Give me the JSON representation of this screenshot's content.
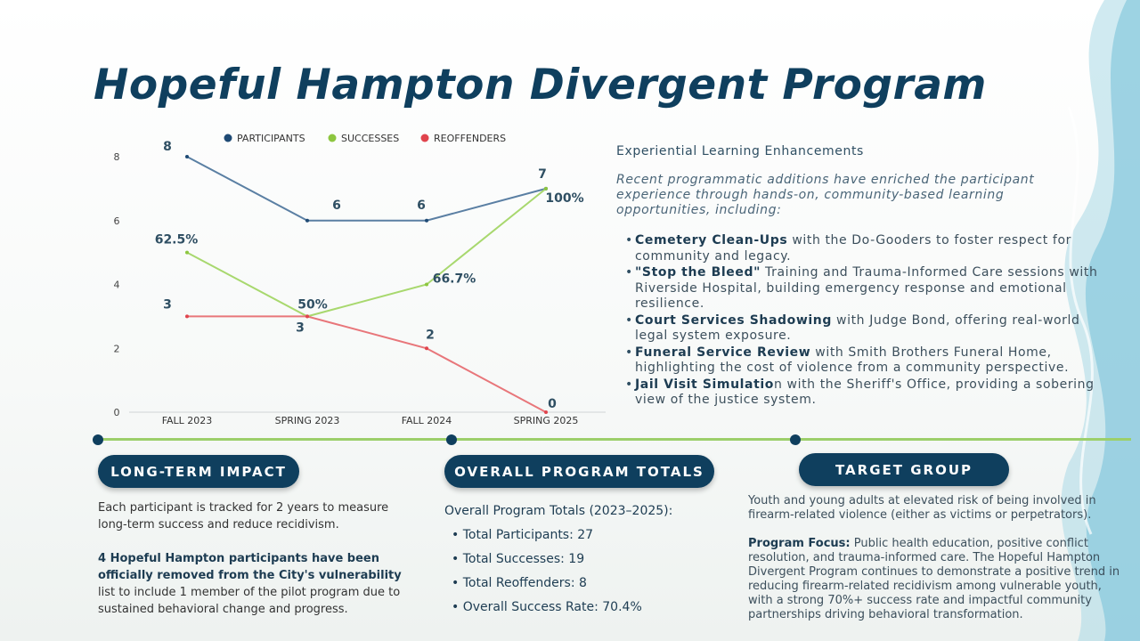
{
  "title": "Hopeful Hampton Divergent Program",
  "chart_data": {
    "type": "line",
    "categories": [
      "FALL 2023",
      "SPRING 2023",
      "FALL 2024",
      "SPRING 2025"
    ],
    "ylim": [
      0,
      8
    ],
    "yticks": [
      0,
      2,
      4,
      6,
      8
    ],
    "legend_position": "top",
    "grid": false,
    "series": [
      {
        "name": "PARTICIPANTS",
        "values": [
          8,
          6,
          6,
          7
        ],
        "labels": [
          "8",
          "6",
          "6",
          "7"
        ],
        "color": "#5a7fa3",
        "dot": "#1e4a74"
      },
      {
        "name": "SUCCESSES",
        "values": [
          5,
          3,
          4,
          7
        ],
        "labels": [
          "62.5%",
          "50%",
          "66.7%",
          "100%"
        ],
        "color": "#a8d86e",
        "dot": "#8dc63f"
      },
      {
        "name": "REOFFENDERS",
        "values": [
          3,
          3,
          2,
          0
        ],
        "labels": [
          "3",
          "3",
          "2",
          "0"
        ],
        "color": "#e8767a",
        "dot": "#e0444d"
      }
    ]
  },
  "experiential": {
    "heading": "Experiential Learning Enhancements",
    "intro": "Recent programmatic additions have enriched the participant experience through hands-on, community-based learning opportunities, including:",
    "items": [
      {
        "bold": "Cemetery Clean-Ups",
        "rest": " with the Do-Gooders to foster respect for community and legacy."
      },
      {
        "bold": "\"Stop the Bleed\"",
        "rest": " Training and Trauma-Informed Care sessions with Riverside Hospital, building emergency response and emotional resilience."
      },
      {
        "bold": "Court Services Shadowing",
        "rest": " with Judge Bond, offering real-world legal system exposure."
      },
      {
        "bold": "Funeral Service Review",
        "rest": " with Smith Brothers Funeral Home, highlighting the cost of violence from a community perspective."
      },
      {
        "bold": "Jail Visit Simulatio",
        "rest": "n with the Sheriff's Office, providing a sobering view of the justice system."
      }
    ]
  },
  "long_term": {
    "pill": "LONG-TERM IMPACT",
    "p1": "Each participant is tracked for 2 years to measure long-term success and reduce recidivism.",
    "p2_bold": "4 Hopeful Hampton participants have been officially removed from the City's vulnerability",
    "p2_rest": " list to include 1 member of the pilot program due to sustained behavioral change and progress."
  },
  "totals": {
    "pill": "OVERALL PROGRAM TOTALS",
    "heading": "Overall Program Totals (2023–2025):",
    "items": [
      "Total Participants: 27",
      "Total Successes: 19",
      "Total Reoffenders: 8",
      "Overall Success Rate: 70.4%"
    ]
  },
  "target": {
    "pill": "TARGET GROUP",
    "p1": "Youth and young adults at elevated risk of being involved in firearm-related violence (either as victims or perpetrators).",
    "focus_label": "Program Focus:",
    "focus_text": " Public health education, positive conflict resolution, and trauma-informed care. The Hopeful Hampton Divergent Program continues to demonstrate a positive trend in reducing firearm-related recidivism among vulnerable youth, with a strong 70%+ success rate and impactful community partnerships driving behavioral transformation."
  }
}
